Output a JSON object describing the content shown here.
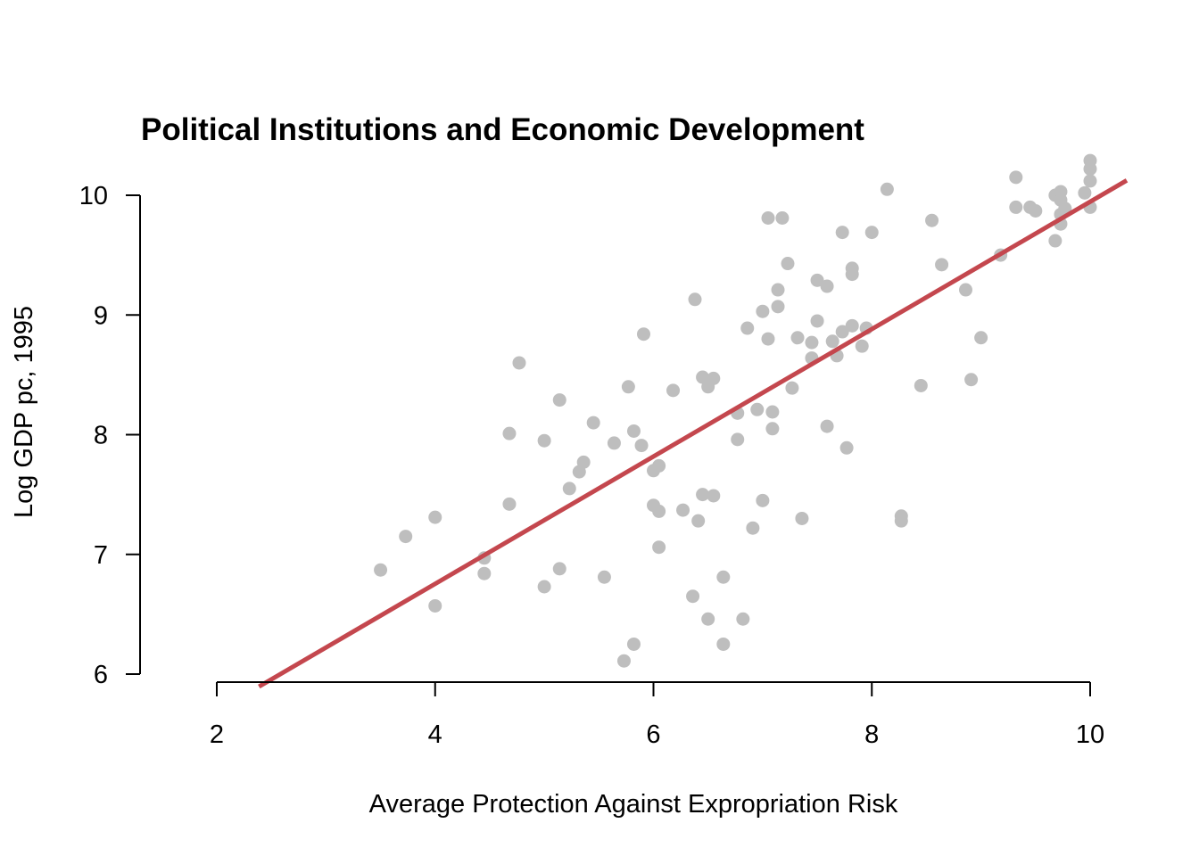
{
  "chart_data": {
    "type": "scatter",
    "title": "Political Institutions and Economic Development",
    "xlabel": "Average Protection Against Expropriation Risk",
    "ylabel": "Log GDP pc, 1995",
    "xlim": [
      2,
      10
    ],
    "ylim": [
      6,
      10
    ],
    "x_ticks": [
      2,
      4,
      6,
      8,
      10
    ],
    "y_ticks": [
      6,
      7,
      8,
      9,
      10
    ],
    "grid": false,
    "point_color": "#bebebe",
    "fit_line": {
      "color": "#c4474e",
      "intercept": 4.626,
      "slope": 0.532
    },
    "points": [
      {
        "x": 3.5,
        "y": 6.87
      },
      {
        "x": 3.73,
        "y": 7.15
      },
      {
        "x": 4.0,
        "y": 7.31
      },
      {
        "x": 4.0,
        "y": 6.57
      },
      {
        "x": 4.45,
        "y": 6.97
      },
      {
        "x": 4.45,
        "y": 6.84
      },
      {
        "x": 4.68,
        "y": 8.01
      },
      {
        "x": 4.68,
        "y": 7.42
      },
      {
        "x": 4.77,
        "y": 8.6
      },
      {
        "x": 5.0,
        "y": 7.95
      },
      {
        "x": 5.0,
        "y": 6.73
      },
      {
        "x": 5.14,
        "y": 8.29
      },
      {
        "x": 5.14,
        "y": 6.88
      },
      {
        "x": 5.23,
        "y": 7.55
      },
      {
        "x": 5.32,
        "y": 7.69
      },
      {
        "x": 5.36,
        "y": 7.77
      },
      {
        "x": 5.45,
        "y": 8.1
      },
      {
        "x": 5.55,
        "y": 6.81
      },
      {
        "x": 5.64,
        "y": 7.93
      },
      {
        "x": 5.73,
        "y": 6.11
      },
      {
        "x": 5.77,
        "y": 8.4
      },
      {
        "x": 5.82,
        "y": 8.03
      },
      {
        "x": 5.82,
        "y": 6.25
      },
      {
        "x": 5.89,
        "y": 7.91
      },
      {
        "x": 5.91,
        "y": 8.84
      },
      {
        "x": 6.0,
        "y": 7.7
      },
      {
        "x": 6.0,
        "y": 7.41
      },
      {
        "x": 6.05,
        "y": 7.74
      },
      {
        "x": 6.05,
        "y": 7.36
      },
      {
        "x": 6.05,
        "y": 7.06
      },
      {
        "x": 6.18,
        "y": 8.37
      },
      {
        "x": 6.27,
        "y": 7.37
      },
      {
        "x": 6.36,
        "y": 6.65
      },
      {
        "x": 6.38,
        "y": 9.13
      },
      {
        "x": 6.41,
        "y": 7.28
      },
      {
        "x": 6.45,
        "y": 8.48
      },
      {
        "x": 6.45,
        "y": 7.5
      },
      {
        "x": 6.5,
        "y": 8.4
      },
      {
        "x": 6.5,
        "y": 6.46
      },
      {
        "x": 6.55,
        "y": 8.47
      },
      {
        "x": 6.55,
        "y": 7.49
      },
      {
        "x": 6.64,
        "y": 6.81
      },
      {
        "x": 6.64,
        "y": 6.25
      },
      {
        "x": 6.77,
        "y": 8.18
      },
      {
        "x": 6.77,
        "y": 7.96
      },
      {
        "x": 6.82,
        "y": 6.46
      },
      {
        "x": 6.86,
        "y": 8.89
      },
      {
        "x": 6.91,
        "y": 7.22
      },
      {
        "x": 6.95,
        "y": 8.21
      },
      {
        "x": 7.0,
        "y": 9.03
      },
      {
        "x": 7.0,
        "y": 7.45
      },
      {
        "x": 7.05,
        "y": 9.81
      },
      {
        "x": 7.05,
        "y": 8.8
      },
      {
        "x": 7.09,
        "y": 8.19
      },
      {
        "x": 7.09,
        "y": 8.05
      },
      {
        "x": 7.14,
        "y": 9.21
      },
      {
        "x": 7.14,
        "y": 9.07
      },
      {
        "x": 7.18,
        "y": 9.81
      },
      {
        "x": 7.23,
        "y": 9.43
      },
      {
        "x": 7.27,
        "y": 8.39
      },
      {
        "x": 7.32,
        "y": 8.81
      },
      {
        "x": 7.36,
        "y": 7.3
      },
      {
        "x": 7.45,
        "y": 8.77
      },
      {
        "x": 7.45,
        "y": 8.64
      },
      {
        "x": 7.5,
        "y": 9.29
      },
      {
        "x": 7.5,
        "y": 8.95
      },
      {
        "x": 7.59,
        "y": 9.24
      },
      {
        "x": 7.59,
        "y": 8.07
      },
      {
        "x": 7.64,
        "y": 8.78
      },
      {
        "x": 7.68,
        "y": 8.66
      },
      {
        "x": 7.73,
        "y": 9.69
      },
      {
        "x": 7.73,
        "y": 8.86
      },
      {
        "x": 7.77,
        "y": 7.89
      },
      {
        "x": 7.82,
        "y": 9.39
      },
      {
        "x": 7.82,
        "y": 9.34
      },
      {
        "x": 7.82,
        "y": 8.91
      },
      {
        "x": 7.91,
        "y": 8.74
      },
      {
        "x": 7.95,
        "y": 8.89
      },
      {
        "x": 8.0,
        "y": 9.69
      },
      {
        "x": 8.14,
        "y": 10.05
      },
      {
        "x": 8.27,
        "y": 7.32
      },
      {
        "x": 8.27,
        "y": 7.28
      },
      {
        "x": 8.45,
        "y": 8.41
      },
      {
        "x": 8.55,
        "y": 9.79
      },
      {
        "x": 8.64,
        "y": 9.42
      },
      {
        "x": 8.86,
        "y": 9.21
      },
      {
        "x": 8.91,
        "y": 8.46
      },
      {
        "x": 9.0,
        "y": 8.81
      },
      {
        "x": 9.18,
        "y": 9.5
      },
      {
        "x": 9.32,
        "y": 10.15
      },
      {
        "x": 9.32,
        "y": 9.9
      },
      {
        "x": 9.45,
        "y": 9.9
      },
      {
        "x": 9.5,
        "y": 9.87
      },
      {
        "x": 9.68,
        "y": 10.0
      },
      {
        "x": 9.68,
        "y": 9.62
      },
      {
        "x": 9.73,
        "y": 10.03
      },
      {
        "x": 9.73,
        "y": 9.96
      },
      {
        "x": 9.73,
        "y": 9.84
      },
      {
        "x": 9.73,
        "y": 9.76
      },
      {
        "x": 9.77,
        "y": 9.89
      },
      {
        "x": 9.95,
        "y": 10.02
      },
      {
        "x": 10.0,
        "y": 10.29
      },
      {
        "x": 10.0,
        "y": 10.22
      },
      {
        "x": 10.0,
        "y": 10.12
      },
      {
        "x": 10.0,
        "y": 9.9
      }
    ]
  }
}
